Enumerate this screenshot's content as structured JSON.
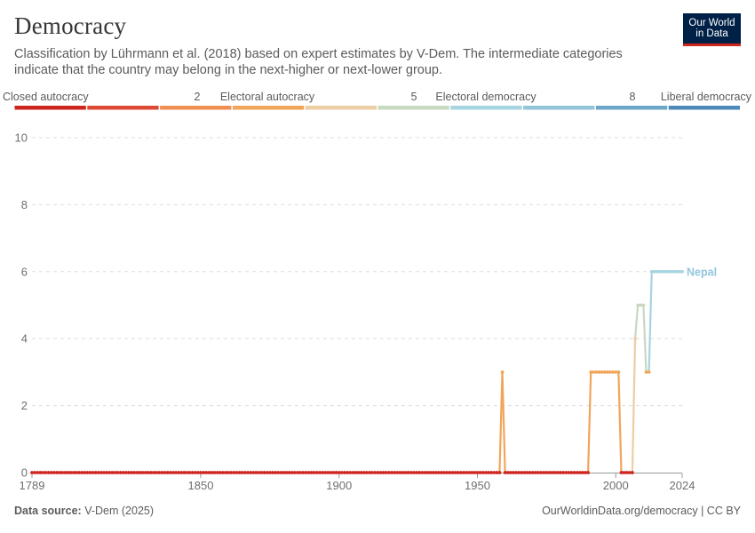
{
  "header": {
    "title": "Democracy",
    "subtitle": "Classification by Lührmann et al. (2018) based on expert estimates by V-Dem. The intermediate categories indicate that the country may belong in the next-higher or next-lower group."
  },
  "logo": {
    "line1": "Our World",
    "line2": "in Data"
  },
  "legend": {
    "labels": [
      "Closed autocracy",
      "2",
      "Electoral autocracy",
      "5",
      "Electoral democracy",
      "8",
      "Liberal democracy"
    ],
    "colors": [
      "#ce261e",
      "#dc4a36",
      "#ef8f52",
      "#f0a55b",
      "#ebcea4",
      "#c9d8c1",
      "#a6d4e0",
      "#92c5da",
      "#6ea6c9",
      "#4d8ab9"
    ]
  },
  "footer": {
    "source_label": "Data source:",
    "source_value": "V-Dem (2025)",
    "credit": "OurWorldinData.org/democracy | CC BY"
  },
  "chart_data": {
    "type": "line",
    "title": "Democracy",
    "xlabel": "",
    "ylabel": "",
    "xlim": [
      1789,
      2024
    ],
    "ylim": [
      0,
      10
    ],
    "x_ticks": [
      1789,
      1850,
      1900,
      1950,
      2000,
      2024
    ],
    "y_ticks": [
      0,
      2,
      4,
      6,
      8,
      10
    ],
    "grid": true,
    "series": [
      {
        "name": "Nepal",
        "segments": [
          {
            "x": [
              1789,
              1958
            ],
            "y": [
              0,
              0
            ]
          },
          {
            "x": [
              1959,
              1959
            ],
            "y": [
              3,
              3
            ]
          },
          {
            "x": [
              1960,
              1990
            ],
            "y": [
              0,
              0
            ]
          },
          {
            "x": [
              1991,
              2001
            ],
            "y": [
              3,
              3
            ]
          },
          {
            "x": [
              2002,
              2006
            ],
            "y": [
              0,
              0
            ]
          },
          {
            "x": [
              2007,
              2007
            ],
            "y": [
              4,
              4
            ]
          },
          {
            "x": [
              2008,
              2010
            ],
            "y": [
              5,
              5
            ]
          },
          {
            "x": [
              2011,
              2012
            ],
            "y": [
              3,
              3
            ]
          },
          {
            "x": [
              2013,
              2024
            ],
            "y": [
              6,
              6
            ]
          }
        ]
      }
    ]
  }
}
